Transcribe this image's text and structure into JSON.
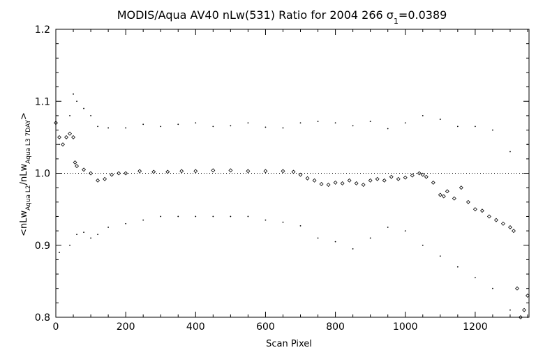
{
  "chart_data": {
    "type": "scatter",
    "title_text": "MODIS/Aqua AV40 nLw(531) Ratio for 2004 266 ",
    "sigma_text": "=0.0389",
    "xlabel": "Scan Pixel",
    "ylabel_text": "<nLw",
    "ylabel_sub1": "Aqua L2",
    "ylabel_mid": "/nLw",
    "ylabel_sub2": "Aqua L3 7DAY",
    "ylabel_end": ">",
    "xlim": [
      0,
      1354
    ],
    "ylim": [
      0.8,
      1.2
    ],
    "xticks": [
      0,
      200,
      400,
      600,
      800,
      1000,
      1200
    ],
    "xticklabels": [
      "0",
      "200",
      "400",
      "600",
      "800",
      "1000",
      "1200"
    ],
    "yticks": [
      0.8,
      0.9,
      1.0,
      1.1,
      1.2
    ],
    "yticklabels": [
      "0.8",
      "0.9",
      "1.0",
      "1.1",
      "1.2"
    ],
    "reference_line": 1.0,
    "series": [
      {
        "role": "mean",
        "marker": "diamond",
        "x": [
          0,
          10,
          20,
          30,
          40,
          50,
          55,
          60,
          80,
          100,
          120,
          140,
          160,
          180,
          200,
          240,
          280,
          320,
          360,
          400,
          450,
          500,
          550,
          600,
          650,
          680,
          700,
          720,
          740,
          760,
          780,
          800,
          820,
          840,
          860,
          880,
          900,
          920,
          940,
          960,
          980,
          1000,
          1020,
          1040,
          1050,
          1060,
          1080,
          1100,
          1110,
          1120,
          1140,
          1160,
          1180,
          1200,
          1220,
          1240,
          1260,
          1280,
          1300,
          1310,
          1320,
          1330,
          1340,
          1350
        ],
        "y": [
          1.07,
          1.05,
          1.04,
          1.05,
          1.055,
          1.05,
          1.015,
          1.01,
          1.005,
          1.0,
          0.99,
          0.992,
          0.998,
          1.0,
          1.0,
          1.003,
          1.002,
          1.002,
          1.003,
          1.003,
          1.004,
          1.004,
          1.003,
          1.003,
          1.003,
          1.002,
          0.998,
          0.993,
          0.99,
          0.985,
          0.984,
          0.987,
          0.986,
          0.99,
          0.986,
          0.984,
          0.99,
          0.992,
          0.99,
          0.995,
          0.992,
          0.994,
          0.997,
          1.0,
          0.998,
          0.995,
          0.987,
          0.97,
          0.968,
          0.975,
          0.965,
          0.98,
          0.96,
          0.95,
          0.948,
          0.94,
          0.935,
          0.93,
          0.925,
          0.92,
          0.84,
          0.8,
          0.81,
          0.83
        ]
      },
      {
        "role": "upper",
        "marker": "dot",
        "x": [
          10,
          40,
          50,
          60,
          80,
          100,
          120,
          150,
          200,
          250,
          300,
          350,
          400,
          450,
          500,
          550,
          600,
          650,
          700,
          750,
          800,
          850,
          900,
          950,
          1000,
          1050,
          1100,
          1150,
          1200,
          1250,
          1300,
          1350
        ],
        "y": [
          1.04,
          1.08,
          1.11,
          1.1,
          1.09,
          1.08,
          1.065,
          1.063,
          1.063,
          1.068,
          1.065,
          1.068,
          1.07,
          1.065,
          1.066,
          1.07,
          1.064,
          1.063,
          1.07,
          1.072,
          1.07,
          1.066,
          1.072,
          1.062,
          1.07,
          1.08,
          1.075,
          1.065,
          1.065,
          1.06,
          1.03,
          1.04
        ]
      },
      {
        "role": "lower",
        "marker": "dot",
        "x": [
          10,
          40,
          60,
          80,
          100,
          120,
          150,
          200,
          250,
          300,
          350,
          400,
          450,
          500,
          550,
          600,
          650,
          700,
          750,
          800,
          850,
          900,
          950,
          1000,
          1050,
          1100,
          1150,
          1200,
          1250,
          1300,
          1350
        ],
        "y": [
          0.89,
          0.9,
          0.915,
          0.918,
          0.91,
          0.915,
          0.925,
          0.93,
          0.935,
          0.94,
          0.94,
          0.94,
          0.94,
          0.94,
          0.94,
          0.935,
          0.932,
          0.927,
          0.91,
          0.905,
          0.895,
          0.91,
          0.925,
          0.92,
          0.9,
          0.885,
          0.87,
          0.855,
          0.84,
          0.81,
          0.8
        ]
      }
    ]
  }
}
